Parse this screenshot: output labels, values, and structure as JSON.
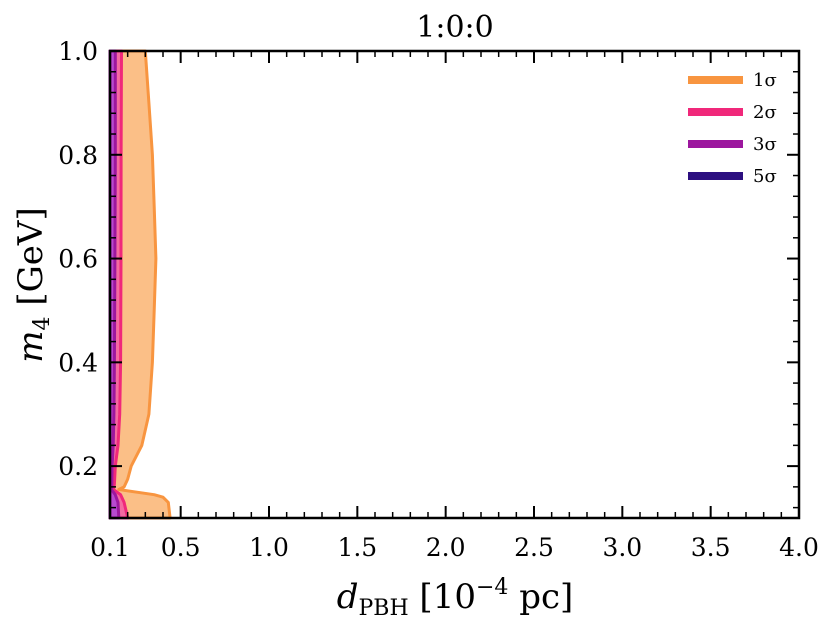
{
  "chart_data": {
    "type": "area",
    "title": "1:0:0",
    "xlabel": {
      "main": "d",
      "sub": "PBH",
      "rest_before_sup": " [10",
      "sup": "−4",
      "rest_after_sup": " pc]"
    },
    "ylabel": {
      "main": "m",
      "sub": "4",
      "rest": " [GeV]"
    },
    "xlim": [
      0.1,
      4.0
    ],
    "ylim": [
      0.1,
      1.0
    ],
    "x_ticks": [
      0.1,
      0.5,
      1.0,
      1.5,
      2.0,
      2.5,
      3.0,
      3.5,
      4.0
    ],
    "x_tick_labels": [
      "0.1",
      "0.5",
      "1.0",
      "1.5",
      "2.0",
      "2.5",
      "3.0",
      "3.5",
      "4.0"
    ],
    "y_ticks": [
      0.2,
      0.4,
      0.6,
      0.8,
      1.0
    ],
    "y_tick_labels": [
      "0.2",
      "0.4",
      "0.6",
      "0.8",
      "1.0"
    ],
    "legend_position": "top-right",
    "series": [
      {
        "name": "1σ",
        "legend_label": "1σ",
        "color": "#f89540",
        "fill": "#fbbf87",
        "boundary": [
          [
            0.3,
            1.0
          ],
          [
            0.32,
            0.9
          ],
          [
            0.34,
            0.8
          ],
          [
            0.35,
            0.7
          ],
          [
            0.36,
            0.6
          ],
          [
            0.35,
            0.5
          ],
          [
            0.34,
            0.4
          ],
          [
            0.32,
            0.3
          ],
          [
            0.28,
            0.24
          ],
          [
            0.22,
            0.2
          ],
          [
            0.2,
            0.175
          ],
          [
            0.18,
            0.16
          ],
          [
            0.15,
            0.155
          ],
          [
            0.35,
            0.145
          ],
          [
            0.4,
            0.14
          ],
          [
            0.43,
            0.13
          ],
          [
            0.44,
            0.1
          ]
        ]
      },
      {
        "name": "2σ",
        "legend_label": "2σ",
        "color": "#f0287a",
        "fill": "#f46aa0",
        "boundary": [
          [
            0.165,
            1.0
          ],
          [
            0.163,
            0.8
          ],
          [
            0.162,
            0.6
          ],
          [
            0.16,
            0.4
          ],
          [
            0.155,
            0.3
          ],
          [
            0.145,
            0.24
          ],
          [
            0.13,
            0.2
          ],
          [
            0.125,
            0.165
          ],
          [
            0.12,
            0.155
          ],
          [
            0.16,
            0.145
          ],
          [
            0.18,
            0.13
          ],
          [
            0.2,
            0.1
          ]
        ]
      },
      {
        "name": "3σ",
        "legend_label": "3σ",
        "color": "#9c179e",
        "fill": "#b84ad0",
        "boundary": [
          [
            0.13,
            1.0
          ],
          [
            0.13,
            0.8
          ],
          [
            0.128,
            0.6
          ],
          [
            0.125,
            0.4
          ],
          [
            0.122,
            0.3
          ],
          [
            0.118,
            0.24
          ],
          [
            0.112,
            0.2
          ],
          [
            0.11,
            0.16
          ],
          [
            0.108,
            0.155
          ],
          [
            0.13,
            0.145
          ],
          [
            0.145,
            0.13
          ],
          [
            0.15,
            0.1
          ]
        ]
      },
      {
        "name": "5σ",
        "legend_label": "5σ",
        "color": "#2c0f80",
        "fill": "#2c0f80",
        "boundary": []
      }
    ]
  }
}
